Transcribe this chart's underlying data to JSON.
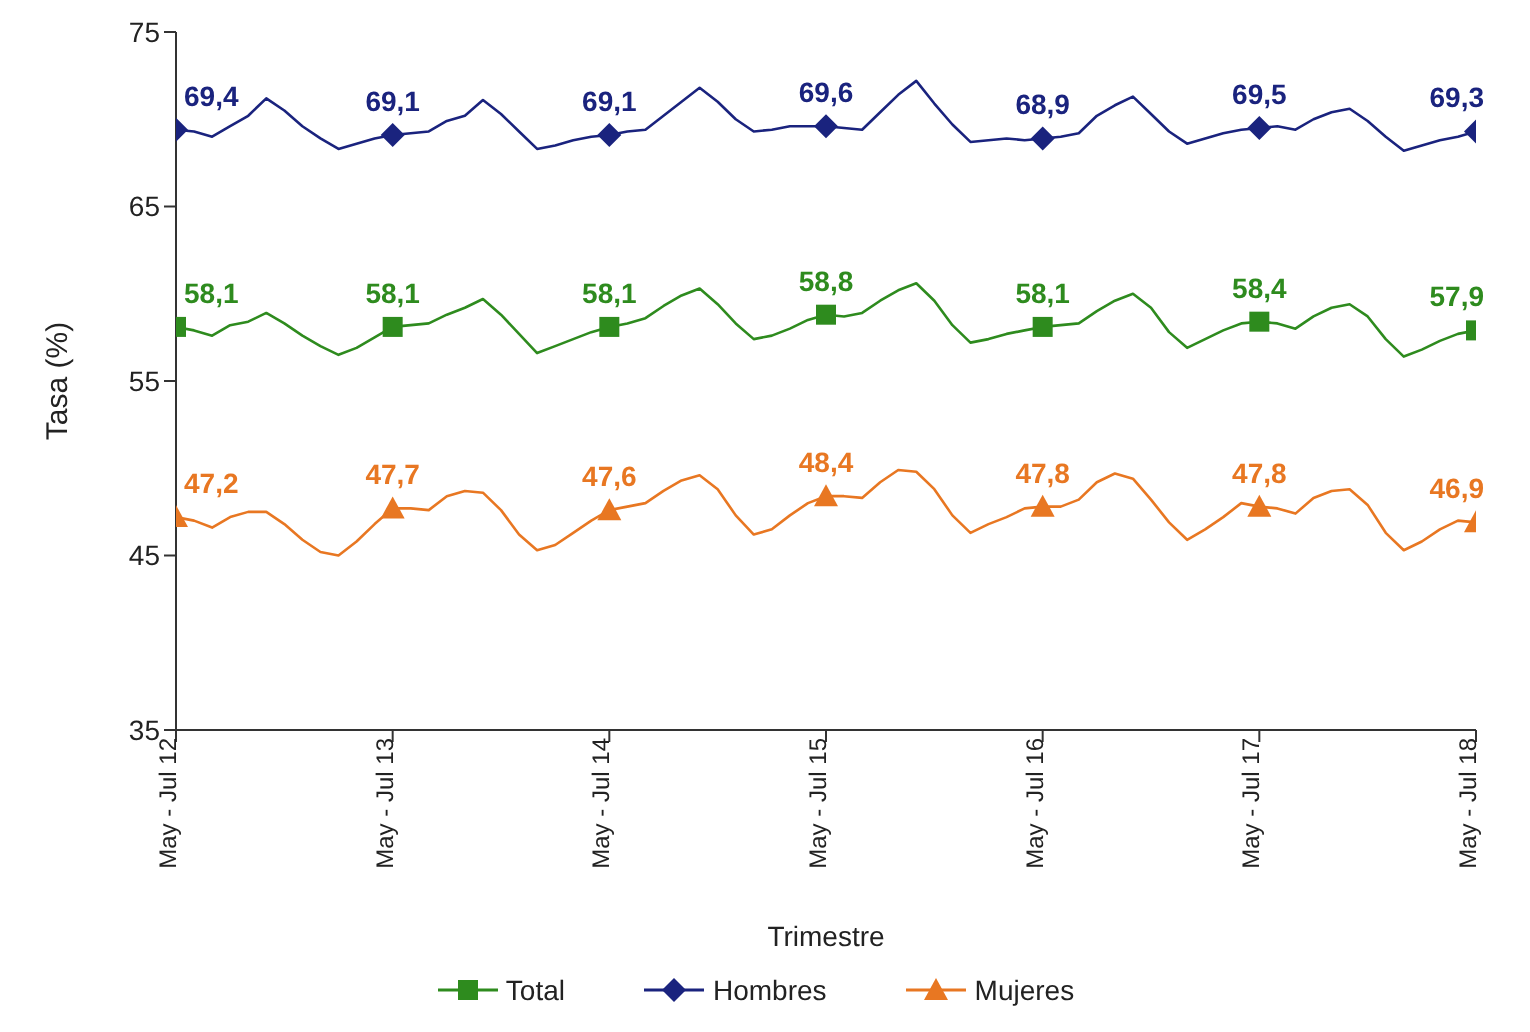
{
  "chart_data": {
    "type": "line",
    "xlabel": "Trimestre",
    "ylabel": "Tasa (%)",
    "ylim": [
      35,
      75
    ],
    "yticks": [
      35,
      45,
      55,
      65,
      75
    ],
    "grid": false,
    "legend": "bottom",
    "xlim": [
      "2012-06",
      "2018-06"
    ],
    "xticks": [
      {
        "value": "2012-06",
        "label": "May - Jul 12"
      },
      {
        "value": "2013-06",
        "label": "May - Jul 13"
      },
      {
        "value": "2014-06",
        "label": "May - Jul 14"
      },
      {
        "value": "2015-06",
        "label": "May - Jul 15"
      },
      {
        "value": "2016-06",
        "label": "May - Jul 16"
      },
      {
        "value": "2017-06",
        "label": "May - Jul 17"
      },
      {
        "value": "2018-06",
        "label": "May - Jul 18"
      }
    ],
    "x": [
      "2012-06",
      "2012-07",
      "2012-08",
      "2012-09",
      "2012-10",
      "2012-11",
      "2012-12",
      "2013-01",
      "2013-02",
      "2013-03",
      "2013-04",
      "2013-05",
      "2013-06",
      "2013-07",
      "2013-08",
      "2013-09",
      "2013-10",
      "2013-11",
      "2013-12",
      "2014-01",
      "2014-02",
      "2014-03",
      "2014-04",
      "2014-05",
      "2014-06",
      "2014-07",
      "2014-08",
      "2014-09",
      "2014-10",
      "2014-11",
      "2014-12",
      "2015-01",
      "2015-02",
      "2015-03",
      "2015-04",
      "2015-05",
      "2015-06",
      "2015-07",
      "2015-08",
      "2015-09",
      "2015-10",
      "2015-11",
      "2015-12",
      "2016-01",
      "2016-02",
      "2016-03",
      "2016-04",
      "2016-05",
      "2016-06",
      "2016-07",
      "2016-08",
      "2016-09",
      "2016-10",
      "2016-11",
      "2016-12",
      "2017-01",
      "2017-02",
      "2017-03",
      "2017-04",
      "2017-05",
      "2017-06",
      "2017-07",
      "2017-08",
      "2017-09",
      "2017-10",
      "2017-11",
      "2017-12",
      "2018-01",
      "2018-02",
      "2018-03",
      "2018-04",
      "2018-05",
      "2018-06"
    ],
    "series": [
      {
        "name": "Total",
        "color": "#2e8b1e",
        "marker": "none",
        "values": [
          58.1,
          57.9,
          57.6,
          58.2,
          58.4,
          58.9,
          58.3,
          57.6,
          57.0,
          56.5,
          56.9,
          57.5,
          58.1,
          58.2,
          58.3,
          58.8,
          59.2,
          59.7,
          58.8,
          57.7,
          56.6,
          57.0,
          57.4,
          57.8,
          58.1,
          58.3,
          58.6,
          59.3,
          59.9,
          60.3,
          59.4,
          58.3,
          57.4,
          57.6,
          58.0,
          58.5,
          58.8,
          58.7,
          58.9,
          59.6,
          60.2,
          60.6,
          59.6,
          58.2,
          57.2,
          57.4,
          57.7,
          57.9,
          58.1,
          58.2,
          58.3,
          59.0,
          59.6,
          60.0,
          59.2,
          57.8,
          56.9,
          57.4,
          57.9,
          58.3,
          58.4,
          58.3,
          58.0,
          58.7,
          59.2,
          59.4,
          58.7,
          57.4,
          56.4,
          56.8,
          57.3,
          57.7,
          57.9
        ]
      },
      {
        "name": "Hombres",
        "color": "#1a237e",
        "marker": "none",
        "values": [
          69.4,
          69.3,
          69.0,
          69.6,
          70.2,
          71.2,
          70.5,
          69.6,
          68.9,
          68.3,
          68.6,
          68.9,
          69.1,
          69.2,
          69.3,
          69.9,
          70.2,
          71.1,
          70.3,
          69.3,
          68.3,
          68.5,
          68.8,
          69.0,
          69.1,
          69.3,
          69.4,
          70.2,
          71.0,
          71.8,
          71.0,
          70.0,
          69.3,
          69.4,
          69.6,
          69.6,
          69.6,
          69.5,
          69.4,
          70.4,
          71.4,
          72.2,
          70.9,
          69.7,
          68.7,
          68.8,
          68.9,
          68.8,
          68.9,
          69.0,
          69.2,
          70.2,
          70.8,
          71.3,
          70.3,
          69.3,
          68.6,
          68.9,
          69.2,
          69.4,
          69.5,
          69.6,
          69.4,
          70.0,
          70.4,
          70.6,
          69.9,
          69.0,
          68.2,
          68.5,
          68.8,
          69.0,
          69.3
        ]
      },
      {
        "name": "Mujeres",
        "color": "#e87722",
        "marker": "none",
        "values": [
          47.2,
          47.0,
          46.6,
          47.2,
          47.5,
          47.5,
          46.8,
          45.9,
          45.2,
          45.0,
          45.8,
          46.8,
          47.7,
          47.7,
          47.6,
          48.4,
          48.7,
          48.6,
          47.6,
          46.2,
          45.3,
          45.6,
          46.3,
          47.0,
          47.6,
          47.8,
          48.0,
          48.7,
          49.3,
          49.6,
          48.8,
          47.3,
          46.2,
          46.5,
          47.3,
          48.0,
          48.4,
          48.4,
          48.3,
          49.2,
          49.9,
          49.8,
          48.8,
          47.3,
          46.3,
          46.8,
          47.2,
          47.7,
          47.8,
          47.8,
          48.2,
          49.2,
          49.7,
          49.4,
          48.2,
          46.9,
          45.9,
          46.5,
          47.2,
          48.0,
          47.8,
          47.7,
          47.4,
          48.3,
          48.7,
          48.8,
          47.9,
          46.3,
          45.3,
          45.8,
          46.5,
          47.0,
          46.9
        ]
      },
      {
        "type": "scatter",
        "color": "#2e8b1e",
        "marker": "square",
        "x": [
          "2012-06",
          "2013-06",
          "2014-06",
          "2015-06",
          "2016-06",
          "2017-06",
          "2018-06"
        ],
        "values": [
          58.1,
          58.1,
          58.1,
          58.8,
          58.1,
          58.4,
          57.9
        ],
        "value_labels": [
          "58,1",
          "58,1",
          "58,1",
          "58,8",
          "58,1",
          "58,4",
          "57,9"
        ]
      },
      {
        "type": "scatter",
        "color": "#1a237e",
        "marker": "diamond",
        "x": [
          "2012-06",
          "2013-06",
          "2014-06",
          "2015-06",
          "2016-06",
          "2017-06",
          "2018-06"
        ],
        "values": [
          69.4,
          69.1,
          69.1,
          69.6,
          68.9,
          69.5,
          69.3
        ],
        "value_labels": [
          "69,4",
          "69,1",
          "69,1",
          "69,6",
          "68,9",
          "69,5",
          "69,3"
        ]
      },
      {
        "type": "scatter",
        "color": "#e87722",
        "marker": "triangle",
        "x": [
          "2012-06",
          "2013-06",
          "2014-06",
          "2015-06",
          "2016-06",
          "2017-06",
          "2018-06"
        ],
        "values": [
          47.2,
          47.7,
          47.6,
          48.4,
          47.8,
          47.8,
          46.9
        ],
        "value_labels": [
          "47,2",
          "47,7",
          "47,6",
          "48,4",
          "47,8",
          "47,8",
          "46,9"
        ]
      }
    ]
  }
}
